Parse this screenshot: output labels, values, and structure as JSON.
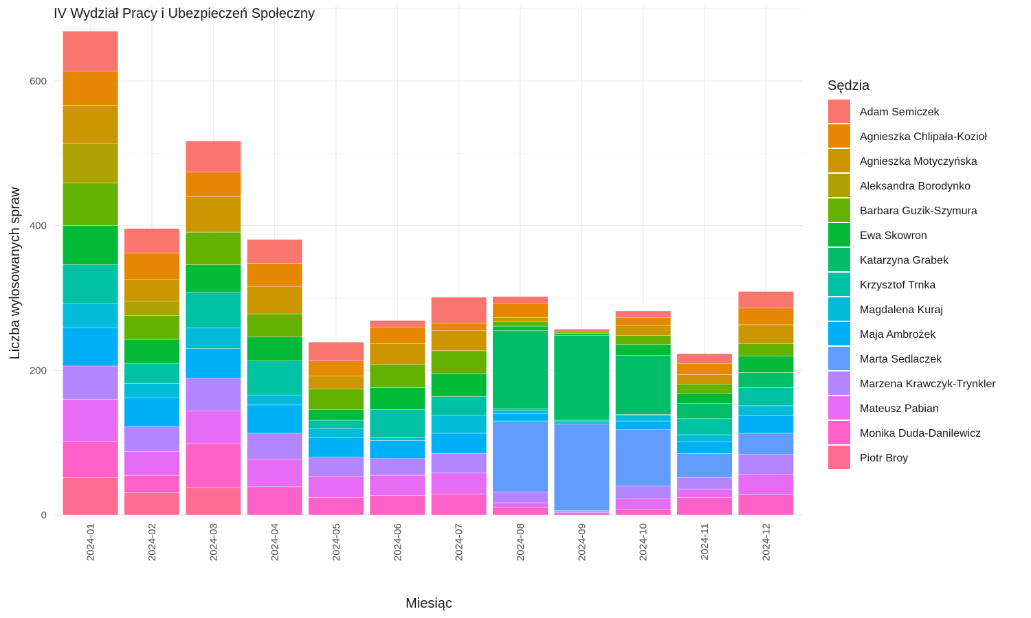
{
  "chart_data": {
    "type": "bar",
    "stacked": true,
    "title": "IV Wydział Pracy i Ubezpieczeń Społeczny",
    "xlabel": "Miesiąc",
    "ylabel": "Liczba wylosowanych spraw",
    "ylim": [
      0,
      700
    ],
    "yticks": [
      0,
      200,
      400,
      600
    ],
    "grid": true,
    "legend": {
      "title": "Sędzia",
      "position": "right"
    },
    "categories": [
      "2024-01",
      "2024-02",
      "2024-03",
      "2024-04",
      "2024-05",
      "2024-06",
      "2024-07",
      "2024-08",
      "2024-09",
      "2024-10",
      "2024-11",
      "2024-12"
    ],
    "series": [
      {
        "name": "Piotr Broy",
        "color": "#FF6C91",
        "values": [
          52,
          31,
          38,
          0,
          0,
          0,
          0,
          0,
          0,
          0,
          0,
          0
        ]
      },
      {
        "name": "Monika Duda-Danilewicz",
        "color": "#FF61C9",
        "values": [
          50,
          24,
          60,
          39,
          24,
          27,
          29,
          11,
          3,
          8,
          24,
          28
        ]
      },
      {
        "name": "Mateusz Pabian",
        "color": "#E76BF3",
        "values": [
          58,
          33,
          46,
          38,
          29,
          28,
          29,
          6,
          1,
          14,
          12,
          28
        ]
      },
      {
        "name": "Marzena Krawczyk-Trynkler",
        "color": "#B385FF",
        "values": [
          46,
          34,
          45,
          36,
          27,
          23,
          27,
          15,
          2,
          18,
          16,
          28
        ]
      },
      {
        "name": "Marta Sedlaczek",
        "color": "#619CFF",
        "values": [
          0,
          0,
          0,
          0,
          0,
          0,
          0,
          98,
          120,
          78,
          33,
          29
        ]
      },
      {
        "name": "Maja Ambrożek",
        "color": "#00B0F6",
        "values": [
          53,
          40,
          41,
          39,
          27,
          25,
          28,
          10,
          0,
          12,
          16,
          24
        ]
      },
      {
        "name": "Magdalena Kuraj",
        "color": "#00BCD8",
        "values": [
          34,
          20,
          29,
          14,
          12,
          4,
          25,
          5,
          3,
          8,
          10,
          14
        ]
      },
      {
        "name": "Krzysztof Trnka",
        "color": "#00C1A3",
        "values": [
          53,
          27,
          49,
          47,
          12,
          39,
          26,
          2,
          2,
          1,
          22,
          25
        ]
      },
      {
        "name": "Katarzyna Grabek",
        "color": "#00BE67",
        "values": [
          0,
          0,
          0,
          0,
          0,
          0,
          0,
          108,
          117,
          82,
          21,
          21
        ]
      },
      {
        "name": "Ewa Skowron",
        "color": "#00BA38",
        "values": [
          54,
          34,
          38,
          33,
          15,
          30,
          31,
          6,
          3,
          15,
          14,
          23
        ]
      },
      {
        "name": "Barbara Guzik-Szymura",
        "color": "#64B200",
        "values": [
          59,
          33,
          45,
          32,
          28,
          32,
          32,
          6,
          2,
          12,
          13,
          17
        ]
      },
      {
        "name": "Aleksandra Borodynko",
        "color": "#AEA200",
        "values": [
          55,
          20,
          0,
          0,
          0,
          0,
          0,
          0,
          0,
          0,
          0,
          0
        ]
      },
      {
        "name": "Agnieszka Motyczyńska",
        "color": "#CC9600",
        "values": [
          52,
          29,
          49,
          38,
          18,
          29,
          28,
          6,
          0,
          14,
          13,
          26
        ]
      },
      {
        "name": "Agnieszka Chlipała-Kozioł",
        "color": "#E58700",
        "values": [
          48,
          37,
          34,
          32,
          21,
          23,
          10,
          20,
          0,
          11,
          15,
          23
        ]
      },
      {
        "name": "Adam Semiczek",
        "color": "#F8766D",
        "values": [
          55,
          34,
          43,
          33,
          26,
          9,
          36,
          9,
          4,
          9,
          14,
          23
        ]
      }
    ]
  }
}
